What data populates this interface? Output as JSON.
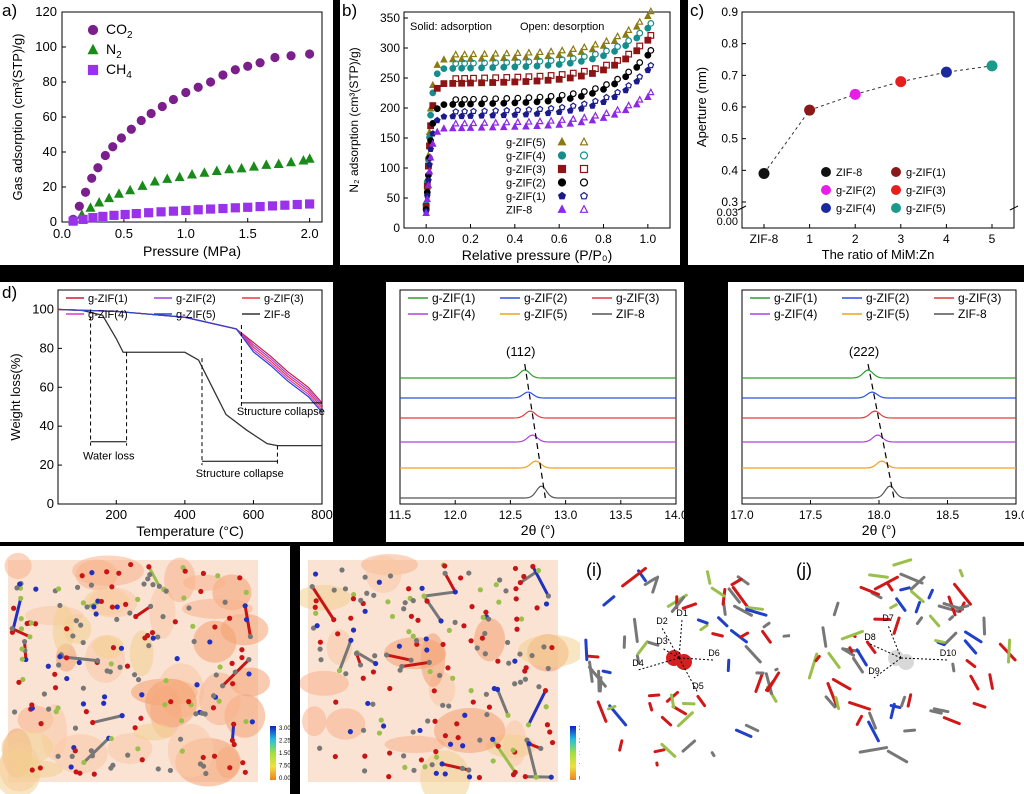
{
  "panel_labels": {
    "a": "a)",
    "b": "b)",
    "c": "c)",
    "d": "d)",
    "e": "",
    "f": "",
    "g": "",
    "h": "",
    "i": "(i)",
    "j": "(j)"
  },
  "chart_data": [
    {
      "id": "a",
      "type": "scatter",
      "xlabel": "Pressure (MPa)",
      "ylabel": "Gas adsorption (cm³(STP)/g)",
      "xlim": [
        0,
        2.1
      ],
      "ylim": [
        0,
        120
      ],
      "xticks": [
        0,
        0.5,
        1.0,
        1.5,
        2.0
      ],
      "xtick_labels": [
        "0.0",
        "0.5",
        "1.0",
        "1.5",
        "2.0"
      ],
      "yticks": [
        0,
        20,
        40,
        60,
        80,
        100,
        120
      ],
      "legend_position": "top-left",
      "series": [
        {
          "name": "CO2",
          "label_main": "CO",
          "label_sub": "2",
          "color": "#7b1f8c",
          "marker": "circle",
          "x": [
            0.09,
            0.14,
            0.19,
            0.24,
            0.29,
            0.35,
            0.41,
            0.48,
            0.56,
            0.64,
            0.72,
            0.81,
            0.9,
            1.0,
            1.1,
            1.2,
            1.3,
            1.4,
            1.5,
            1.6,
            1.72,
            1.85,
            2.0
          ],
          "y": [
            1.5,
            9,
            17,
            25,
            31,
            38,
            43,
            48,
            53,
            58,
            62,
            66,
            70,
            74,
            77,
            80,
            84,
            87,
            89,
            91,
            94,
            95,
            96
          ]
        },
        {
          "name": "N2",
          "label_main": "N",
          "label_sub": "2",
          "color": "#1a8a1a",
          "marker": "triangle",
          "x": [
            0.09,
            0.16,
            0.23,
            0.3,
            0.38,
            0.46,
            0.55,
            0.65,
            0.75,
            0.85,
            0.95,
            1.05,
            1.15,
            1.25,
            1.35,
            1.45,
            1.55,
            1.65,
            1.75,
            1.85,
            1.95,
            2.0
          ],
          "y": [
            1,
            4,
            8,
            11,
            13.5,
            16,
            18,
            20.5,
            23,
            24.5,
            25.5,
            27,
            28,
            29,
            30,
            30.5,
            31.5,
            32.5,
            33,
            34,
            35,
            36
          ]
        },
        {
          "name": "CH4",
          "label_main": "CH",
          "label_sub": "4",
          "color": "#9a32ea",
          "marker": "square",
          "x": [
            0.09,
            0.17,
            0.25,
            0.33,
            0.42,
            0.51,
            0.6,
            0.7,
            0.8,
            0.9,
            1.0,
            1.1,
            1.2,
            1.3,
            1.4,
            1.5,
            1.6,
            1.7,
            1.8,
            1.9,
            2.0
          ],
          "y": [
            0.5,
            1.5,
            2.5,
            3.2,
            3.8,
            4.3,
            4.8,
            5.3,
            5.8,
            6.2,
            6.6,
            7,
            7.4,
            7.7,
            8.1,
            8.4,
            8.8,
            9.2,
            9.6,
            10,
            10.3
          ]
        }
      ]
    },
    {
      "id": "b",
      "type": "scatter",
      "xlabel": "Relative pressure (P/P₀)",
      "ylabel": "N₂ adsorption (cm³(STP)/g)",
      "annotations": [
        "Solid: adsorption",
        "Open: desorption"
      ],
      "xlim": [
        -0.1,
        1.1
      ],
      "ylim": [
        0,
        360
      ],
      "xticks": [
        0,
        0.2,
        0.4,
        0.6,
        0.8,
        1.0
      ],
      "xtick_labels": [
        "0.0",
        "0.2",
        "0.4",
        "0.6",
        "0.8",
        "1.0"
      ],
      "yticks": [
        0,
        50,
        100,
        150,
        200,
        250,
        300,
        350
      ],
      "legend_position": "bottom-right",
      "series": [
        {
          "name": "g-ZIF(5)",
          "color": "#8a7a14",
          "marker": "triangle",
          "plateau": 280,
          "end": 345
        },
        {
          "name": "g-ZIF(4)",
          "color": "#178c8c",
          "marker": "circle",
          "plateau": 265,
          "end": 325
        },
        {
          "name": "g-ZIF(3)",
          "color": "#8c1414",
          "marker": "square",
          "plateau": 240,
          "end": 305
        },
        {
          "name": "g-ZIF(2)",
          "color": "#000000",
          "marker": "circle",
          "plateau": 205,
          "end": 280
        },
        {
          "name": "g-ZIF(1)",
          "color": "#1a1a8c",
          "marker": "pentagon",
          "plateau": 185,
          "end": 255
        },
        {
          "name": "ZIF-8",
          "color": "#8c28e6",
          "marker": "triangle",
          "plateau": 165,
          "end": 210
        }
      ]
    },
    {
      "id": "c",
      "type": "line",
      "xlabel": "The ratio of MiM:Zn",
      "ylabel": "Aperture (nm)",
      "categories": [
        "ZIF-8",
        "1",
        "2",
        "3",
        "4",
        "5"
      ],
      "values": [
        0.39,
        0.59,
        0.64,
        0.68,
        0.71,
        0.73
      ],
      "yticks": [
        0.3,
        0.4,
        0.5,
        0.6,
        0.7,
        0.8,
        0.9
      ],
      "ytick_labels": [
        "0.3",
        "0.4",
        "0.5",
        "0.6",
        "0.7",
        "0.8",
        "0.9"
      ],
      "ybreak_labels": [
        "0.03",
        "0.00"
      ],
      "legend_position": "bottom-right",
      "legend": [
        {
          "name": "ZIF-8",
          "color": "#111111"
        },
        {
          "name": "g-ZIF(1)",
          "color": "#8a1a1a"
        },
        {
          "name": "g-ZIF(2)",
          "color": "#e61ee6"
        },
        {
          "name": "g-ZIF(3)",
          "color": "#e61e1e"
        },
        {
          "name": "g-ZIF(4)",
          "color": "#1a2a9c"
        },
        {
          "name": "g-ZIF(5)",
          "color": "#1a9a8a"
        }
      ]
    },
    {
      "id": "d",
      "type": "line",
      "xlabel": "Temperature (°C)",
      "ylabel": "Weight loss(%)",
      "xlim": [
        30,
        800
      ],
      "ylim": [
        0,
        110
      ],
      "xticks": [
        200,
        400,
        600,
        800
      ],
      "yticks": [
        0,
        20,
        40,
        60,
        80,
        100
      ],
      "annotations": [
        "Water loss",
        "Structure collapse",
        "Structure collapse"
      ],
      "legend": [
        {
          "name": "g-ZIF(1)",
          "color": "#c81e3c"
        },
        {
          "name": "g-ZIF(2)",
          "color": "#a040e6"
        },
        {
          "name": "g-ZIF(3)",
          "color": "#e63c3c"
        },
        {
          "name": "g-ZIF(4)",
          "color": "#d23cd2"
        },
        {
          "name": "g-ZIF(5)",
          "color": "#2846c8"
        },
        {
          "name": "ZIF-8",
          "color": "#333333"
        }
      ]
    },
    {
      "id": "e",
      "type": "line",
      "xlabel": "2θ (°)",
      "peak_label": "(112)",
      "xlim": [
        11.5,
        14.0
      ],
      "xticks": [
        11.5,
        12.0,
        12.5,
        13.0,
        13.5,
        14.0
      ],
      "xtick_labels": [
        "11.5",
        "12.0",
        "12.5",
        "13.0",
        "13.5",
        "14.0"
      ],
      "peak_positions": [
        12.63,
        12.66,
        12.68,
        12.7,
        12.73,
        12.78
      ],
      "legend": [
        {
          "name": "g-ZIF(1)",
          "color": "#2ca02c"
        },
        {
          "name": "g-ZIF(2)",
          "color": "#2c50e0"
        },
        {
          "name": "g-ZIF(3)",
          "color": "#e03c3c"
        },
        {
          "name": "g-ZIF(4)",
          "color": "#b040e0"
        },
        {
          "name": "g-ZIF(5)",
          "color": "#f0a020"
        },
        {
          "name": "ZIF-8",
          "color": "#555555"
        }
      ]
    },
    {
      "id": "f",
      "type": "line",
      "xlabel": "2θ (°)",
      "peak_label": "(222)",
      "xlim": [
        17.0,
        19.0
      ],
      "xticks": [
        17.0,
        17.5,
        18.0,
        18.5,
        19.0
      ],
      "xtick_labels": [
        "17.0",
        "17.5",
        "18.0",
        "18.5",
        "19.0"
      ],
      "peak_positions": [
        17.92,
        17.95,
        17.97,
        17.99,
        18.02,
        18.08
      ],
      "legend": [
        {
          "name": "g-ZIF(1)",
          "color": "#2ca02c"
        },
        {
          "name": "g-ZIF(2)",
          "color": "#2c50e0"
        },
        {
          "name": "g-ZIF(3)",
          "color": "#e03c3c"
        },
        {
          "name": "g-ZIF(4)",
          "color": "#b040e0"
        },
        {
          "name": "g-ZIF(5)",
          "color": "#f0a020"
        },
        {
          "name": "ZIF-8",
          "color": "#555555"
        }
      ]
    }
  ],
  "colorbar_labels": [
    "3.000e-1",
    "2.250e-1",
    "1.500e-1",
    "7.500e-2",
    "0.000"
  ],
  "distance_labels_i": [
    "D1",
    "D2",
    "D3",
    "D4",
    "D5",
    "D6"
  ],
  "distance_labels_j": [
    "D7",
    "D8",
    "D9",
    "D10"
  ]
}
